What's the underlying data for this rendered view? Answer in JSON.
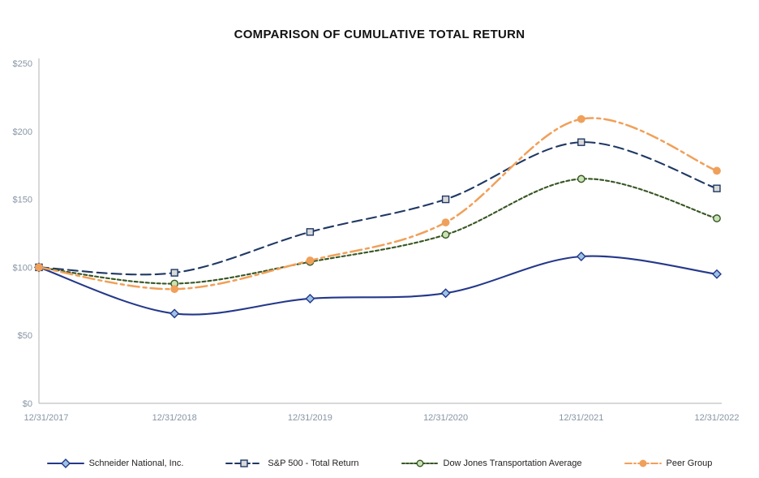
{
  "chart_data": {
    "type": "line",
    "title": "COMPARISON OF CUMULATIVE TOTAL RETURN",
    "x": [
      "12/31/2017",
      "12/31/2018",
      "12/31/2019",
      "12/31/2020",
      "12/31/2021",
      "12/31/2022"
    ],
    "ylim": [
      0,
      250
    ],
    "ytick_values": [
      0,
      50,
      100,
      150,
      200,
      250
    ],
    "ytick_labels": [
      "$0",
      "$50",
      "$100",
      "$150",
      "$200",
      "$250"
    ],
    "axis_color": "#BFBFBF",
    "grid": "off",
    "legend_position": "bottom",
    "series": [
      {
        "id": "schneider-national",
        "name": "Schneider National, Inc.",
        "values": [
          100,
          66,
          77,
          81,
          108,
          95
        ],
        "color": "#24388A",
        "dash": "solid",
        "marker": "diamond",
        "marker_fill": "#9DC3E6"
      },
      {
        "id": "sp500-total-return",
        "name": "S&P 500 - Total Return",
        "values": [
          100,
          96,
          126,
          150,
          192,
          158
        ],
        "color": "#1F3864",
        "dash": "dashed",
        "marker": "square",
        "marker_fill": "#D9D9D9"
      },
      {
        "id": "dow-jones-transportation-average",
        "name": "Dow Jones Transportation Average",
        "values": [
          100,
          88,
          104,
          124,
          165,
          136
        ],
        "color": "#375623",
        "dash": "dotted",
        "marker": "circle",
        "marker_fill": "#C9E3B5"
      },
      {
        "id": "peer-group",
        "name": "Peer Group",
        "values": [
          100,
          84,
          105,
          133,
          209,
          171
        ],
        "color": "#F0A05A",
        "dash": "dashdot",
        "marker": "circle",
        "marker_fill": "#F0A05A"
      }
    ]
  }
}
